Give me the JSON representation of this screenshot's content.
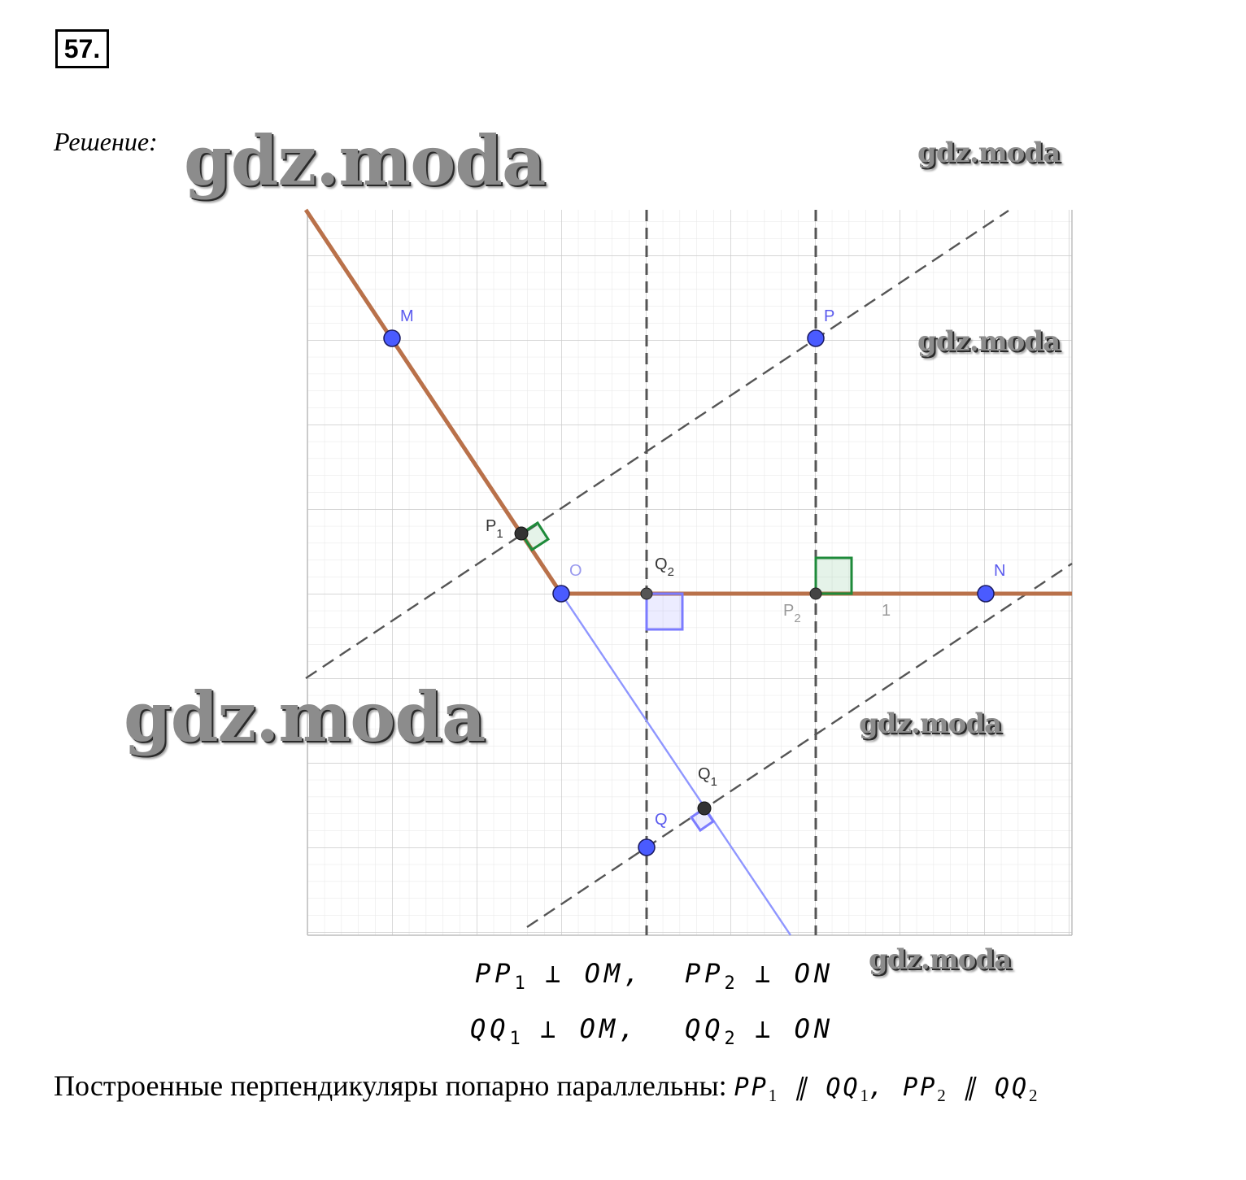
{
  "header": {
    "problem_number": "57.",
    "solution_label": "Решение:"
  },
  "watermarks": [
    "gdz.moda",
    "gdz.moda",
    "gdz.moda",
    "gdz.moda",
    "gdz.moda",
    "gdz.moda"
  ],
  "points": {
    "M": "M",
    "P": "P",
    "P1": "P",
    "P1_sub": "1",
    "O": "O",
    "Q2": "Q",
    "Q2_sub": "2",
    "P2": "P",
    "P2_sub": "2",
    "N": "N",
    "Q1": "Q",
    "Q1_sub": "1",
    "Q": "Q",
    "stray": "1"
  },
  "formulas": {
    "r1c1": {
      "a": "PP",
      "sub": "1",
      "b": " ⊥ OM,"
    },
    "r1c2": {
      "a": "PP",
      "sub": "2",
      "b": " ⊥ ON"
    },
    "r2c1": {
      "a": "QQ",
      "sub": "1",
      "b": " ⊥ OM,"
    },
    "r2c2": {
      "a": "QQ",
      "sub": "2",
      "b": " ⊥ ON"
    }
  },
  "conclusion": {
    "text": "Построенные перпендикуляры попарно параллельны: ",
    "a": "PP",
    "a_sub": "1",
    "par1": " ∥ ",
    "b": "QQ",
    "b_sub": "1",
    "sep": ", ",
    "c": "PP",
    "c_sub": "2",
    "par2": " ∥ ",
    "d": "QQ",
    "d_sub": "2"
  },
  "colors": {
    "angle_sides": "#b9714a",
    "point_fill": "#4a5bff",
    "projection_fill": "#333333",
    "construction_line": "#555555",
    "blue_line": "#8f96ff",
    "right_angle_green": "#1e8a3a",
    "right_angle_blue": "#7b7bff",
    "grid": "#cfcfcf"
  }
}
